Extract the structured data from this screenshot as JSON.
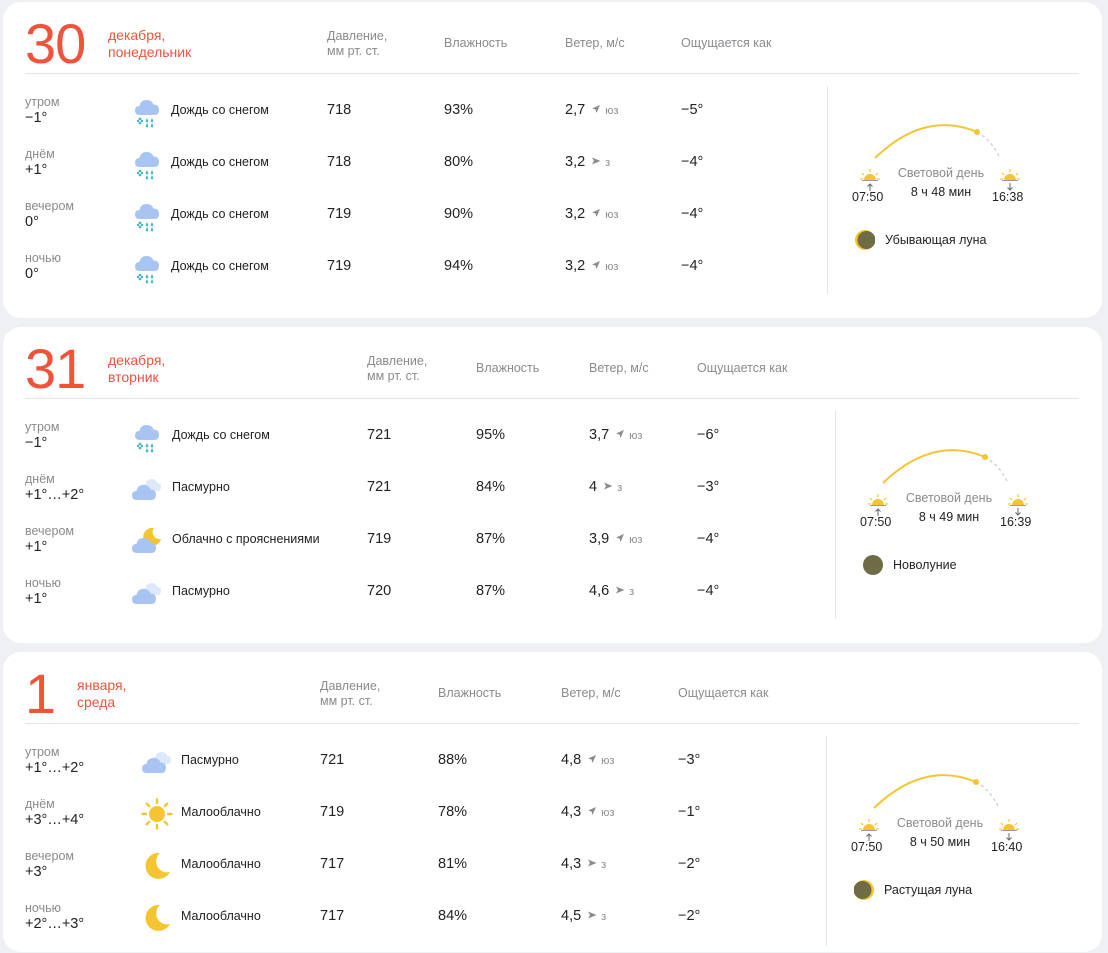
{
  "colors": {
    "accent": "#f0523a",
    "sun": "#f5c531",
    "moon": "#6f6c45",
    "muted": "#8a8a8f"
  },
  "headers": {
    "pressure": "Давление,\nмм рт. ст.",
    "humidity": "Влажность",
    "wind": "Ветер, м/с",
    "feels": "Ощущается как"
  },
  "days": [
    {
      "day": "30",
      "month": "декабря,",
      "weekday": "понедельник",
      "rows": [
        {
          "part": "утром",
          "temp": "−1°",
          "icon": "rain-snow-icon",
          "cond": "Дождь со снегом",
          "pressure": "718",
          "humidity": "93%",
          "wind": "2,7",
          "dir": "юз",
          "dir_icon": "wind-arrow-sw-icon",
          "feels": "−5°"
        },
        {
          "part": "днём",
          "temp": "+1°",
          "icon": "rain-snow-icon",
          "cond": "Дождь со снегом",
          "pressure": "718",
          "humidity": "80%",
          "wind": "3,2",
          "dir": "з",
          "dir_icon": "wind-arrow-w-icon",
          "feels": "−4°"
        },
        {
          "part": "вечером",
          "temp": "0°",
          "icon": "rain-snow-icon",
          "cond": "Дождь со снегом",
          "pressure": "719",
          "humidity": "90%",
          "wind": "3,2",
          "dir": "юз",
          "dir_icon": "wind-arrow-sw-icon",
          "feels": "−4°"
        },
        {
          "part": "ночью",
          "temp": "0°",
          "icon": "rain-snow-icon",
          "cond": "Дождь со снегом",
          "pressure": "719",
          "humidity": "94%",
          "wind": "3,2",
          "dir": "юз",
          "dir_icon": "wind-arrow-sw-icon",
          "feels": "−4°"
        }
      ],
      "sun": {
        "label": "Световой день",
        "length": "8 ч 48 мин",
        "sunrise": "07:50",
        "sunset": "16:38"
      },
      "moon": {
        "phase": "Убывающая луна",
        "icon": "waning-moon-icon"
      }
    },
    {
      "day": "31",
      "month": "декабря,",
      "weekday": "вторник",
      "rows": [
        {
          "part": "утром",
          "temp": "−1°",
          "icon": "rain-snow-icon",
          "cond": "Дождь со снегом",
          "pressure": "721",
          "humidity": "95%",
          "wind": "3,7",
          "dir": "юз",
          "dir_icon": "wind-arrow-sw-icon",
          "feels": "−6°"
        },
        {
          "part": "днём",
          "temp": "+1°…+2°",
          "icon": "overcast-icon",
          "cond": "Пасмурно",
          "pressure": "721",
          "humidity": "84%",
          "wind": "4",
          "dir": "з",
          "dir_icon": "wind-arrow-w-icon",
          "feels": "−3°"
        },
        {
          "part": "вечером",
          "temp": "+1°",
          "icon": "cloudy-night-icon",
          "cond": "Облачно с прояснениями",
          "pressure": "719",
          "humidity": "87%",
          "wind": "3,9",
          "dir": "юз",
          "dir_icon": "wind-arrow-sw-icon",
          "feels": "−4°"
        },
        {
          "part": "ночью",
          "temp": "+1°",
          "icon": "overcast-icon",
          "cond": "Пасмурно",
          "pressure": "720",
          "humidity": "87%",
          "wind": "4,6",
          "dir": "з",
          "dir_icon": "wind-arrow-w-icon",
          "feels": "−4°"
        }
      ],
      "sun": {
        "label": "Световой день",
        "length": "8 ч 49 мин",
        "sunrise": "07:50",
        "sunset": "16:39"
      },
      "moon": {
        "phase": "Новолуние",
        "icon": "new-moon-icon"
      }
    },
    {
      "day": "1",
      "month": "января,",
      "weekday": "среда",
      "rows": [
        {
          "part": "утром",
          "temp": "+1°…+2°",
          "icon": "overcast-icon",
          "cond": "Пасмурно",
          "pressure": "721",
          "humidity": "88%",
          "wind": "4,8",
          "dir": "юз",
          "dir_icon": "wind-arrow-sw-icon",
          "feels": "−3°"
        },
        {
          "part": "днём",
          "temp": "+3°…+4°",
          "icon": "sun-icon",
          "cond": "Малооблачно",
          "pressure": "719",
          "humidity": "78%",
          "wind": "4,3",
          "dir": "юз",
          "dir_icon": "wind-arrow-sw-icon",
          "feels": "−1°"
        },
        {
          "part": "вечером",
          "temp": "+3°",
          "icon": "moon-crescent-icon",
          "cond": "Малооблачно",
          "pressure": "717",
          "humidity": "81%",
          "wind": "4,3",
          "dir": "з",
          "dir_icon": "wind-arrow-w-icon",
          "feels": "−2°"
        },
        {
          "part": "ночью",
          "temp": "+2°…+3°",
          "icon": "moon-crescent-icon",
          "cond": "Малооблачно",
          "pressure": "717",
          "humidity": "84%",
          "wind": "4,5",
          "dir": "з",
          "dir_icon": "wind-arrow-w-icon",
          "feels": "−2°"
        }
      ],
      "sun": {
        "label": "Световой день",
        "length": "8 ч 50 мин",
        "sunrise": "07:50",
        "sunset": "16:40"
      },
      "moon": {
        "phase": "Растущая луна",
        "icon": "waxing-moon-icon"
      }
    }
  ]
}
